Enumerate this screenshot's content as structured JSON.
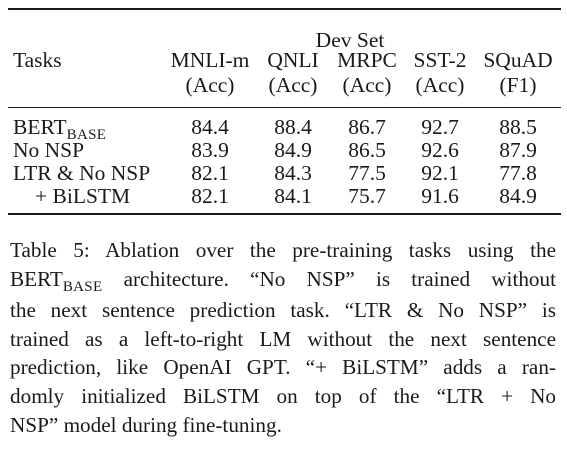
{
  "table": {
    "group_header": "Dev Set",
    "tasks_header": "Tasks",
    "columns": [
      {
        "name": "MNLI-m",
        "metric": "(Acc)"
      },
      {
        "name": "QNLI",
        "metric": "(Acc)"
      },
      {
        "name": "MRPC",
        "metric": "(Acc)"
      },
      {
        "name": "SST-2",
        "metric": "(Acc)"
      },
      {
        "name": "SQuAD",
        "metric": "(F1)"
      }
    ],
    "rows": [
      {
        "label": "BERT",
        "label_sub": "BASE",
        "values": [
          "84.4",
          "88.4",
          "86.7",
          "92.7",
          "88.5"
        ]
      },
      {
        "label": "No NSP",
        "label_sub": "",
        "values": [
          "83.9",
          "84.9",
          "86.5",
          "92.6",
          "87.9"
        ]
      },
      {
        "label": "LTR & No NSP",
        "label_sub": "",
        "values": [
          "82.1",
          "84.3",
          "77.5",
          "92.1",
          "77.8"
        ]
      },
      {
        "label": "+ BiLSTM",
        "label_sub": "",
        "values": [
          "82.1",
          "84.1",
          "75.7",
          "91.6",
          "84.9"
        ]
      }
    ]
  },
  "caption": {
    "line1": "Table 5: Ablation over the pre-training tasks using the",
    "line2_pre": "BERT",
    "line2_sub": "BASE",
    "line2_post": " architecture. “No NSP” is trained without",
    "line3": "the next sentence prediction task. “LTR & No NSP” is",
    "line4": "trained as a left-to-right LM without the next sentence",
    "line5": "prediction, like OpenAI GPT. “+ BiLSTM” adds a ran-",
    "line6": "domly initialized BiLSTM on top of the “LTR + No",
    "line7": "NSP” model during fine-tuning."
  }
}
